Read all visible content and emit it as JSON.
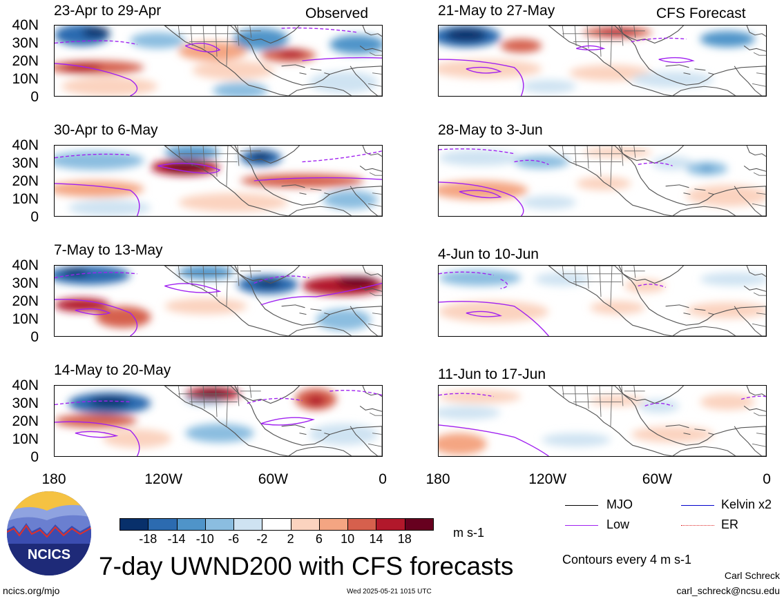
{
  "panels": {
    "obs": [
      {
        "title": "23-Apr to 29-Apr"
      },
      {
        "title": "30-Apr to 6-May"
      },
      {
        "title": "7-May to 13-May"
      },
      {
        "title": "14-May to 20-May"
      }
    ],
    "fcst": [
      {
        "title": "21-May to 27-May"
      },
      {
        "title": "28-May to 3-Jun"
      },
      {
        "title": "4-Jun to 10-Jun"
      },
      {
        "title": "11-Jun to 17-Jun"
      }
    ],
    "obs_label": "Observed",
    "fcst_label": "CFS Forecast"
  },
  "axes": {
    "lat_ticks": [
      "40N",
      "30N",
      "20N",
      "10N",
      "0"
    ],
    "lon_ticks": [
      "180",
      "120W",
      "60W",
      "0"
    ]
  },
  "colorbar": {
    "labels": [
      "-18",
      "-14",
      "-10",
      "-6",
      "-2",
      "2",
      "6",
      "10",
      "14",
      "18"
    ],
    "colors": [
      "#08306b",
      "#2c6bb0",
      "#4f94c9",
      "#8bbde0",
      "#cfe3f2",
      "#ffffff",
      "#fbd3bf",
      "#f4a582",
      "#d6604d",
      "#b2182b",
      "#67001f"
    ],
    "unit": "m s-1"
  },
  "legend": {
    "items": [
      {
        "label": "MJO",
        "color": "#000000"
      },
      {
        "label": "Kelvin x2",
        "color": "#0000cc"
      },
      {
        "label": "Low",
        "color": "#a020f0"
      },
      {
        "label": "ER",
        "color": "#dd2222"
      }
    ],
    "contour_note": "Contours every 4 m s-1"
  },
  "logo_text": "NCICS",
  "main_title": "7-day UWND200 with CFS forecasts",
  "footer": {
    "left": "ncics.org/mjo",
    "center": "Wed 2025-05-21 1015 UTC",
    "author": "Carl Schreck",
    "email": "carl_schreck@ncsu.edu"
  }
}
